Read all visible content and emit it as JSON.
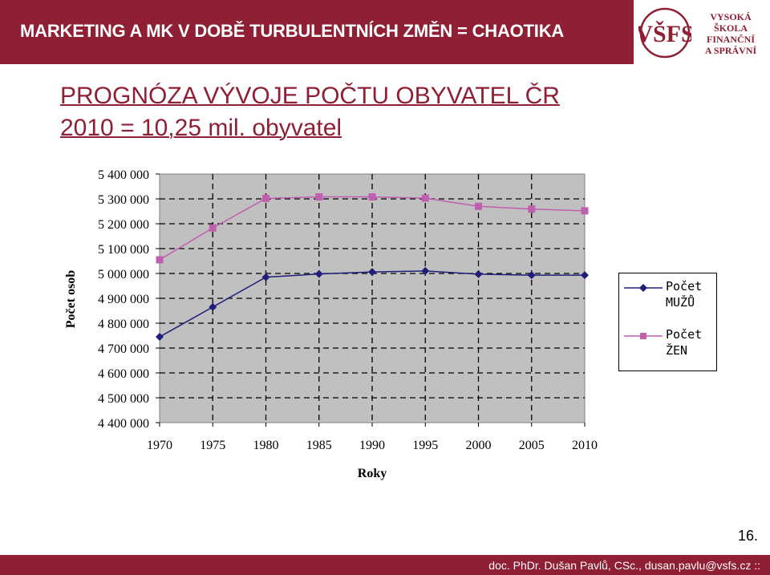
{
  "header": {
    "title": "MARKETING A MK V DOBĚ TURBULENTNÍCH ZMĚN = CHAOTIKA"
  },
  "logo": {
    "line1": "VYSOKÁ ŠKOLA",
    "line2": "FINANČNÍ",
    "line3": "A SPRÁVNÍ",
    "mark": "VŠFS"
  },
  "slide": {
    "title_line1": "PROGNÓZA VÝVOJE POČTU OBYVATEL ČR",
    "title_line2": "2010 = 10,25 mil. obyvatel"
  },
  "chart_data": {
    "type": "line",
    "title": "",
    "xlabel": "Roky",
    "ylabel": "Počet osob",
    "categories": [
      "1970",
      "1975",
      "1980",
      "1985",
      "1990",
      "1995",
      "2000",
      "2005",
      "2010"
    ],
    "ylim": [
      4400000,
      5400000
    ],
    "yticks": [
      4400000,
      4500000,
      4600000,
      4700000,
      4800000,
      4900000,
      5000000,
      5100000,
      5200000,
      5300000,
      5400000
    ],
    "ytick_labels": [
      "4 400 000",
      "4 500 000",
      "4 600 000",
      "4 700 000",
      "4 800 000",
      "4 900 000",
      "5 000 000",
      "5 100 000",
      "5 200 000",
      "5 300 000",
      "5 400 000"
    ],
    "grid": true,
    "legend_position": "right",
    "series": [
      {
        "name": "Počet MUŽŮ",
        "legend_line1": "Počet",
        "legend_line2": "MUŽŮ",
        "color": "#1f1f7a",
        "marker": "diamond",
        "values": [
          4745000,
          4865000,
          4985000,
          4998000,
          5006000,
          5010000,
          4997000,
          4993000,
          4993000
        ]
      },
      {
        "name": "Počet ŽEN",
        "legend_line1": "Počet",
        "legend_line2": "ŽEN",
        "color": "#c05fb0",
        "marker": "square",
        "values": [
          5055000,
          5183000,
          5302000,
          5308000,
          5308000,
          5303000,
          5270000,
          5259000,
          5252000
        ]
      }
    ],
    "plot_background": "#c0c0c0"
  },
  "page": {
    "number": "16."
  },
  "footer": {
    "text": "doc. PhDr. Dušan Pavlů, CSc., dusan.pavlu@vsfs.cz ::"
  }
}
